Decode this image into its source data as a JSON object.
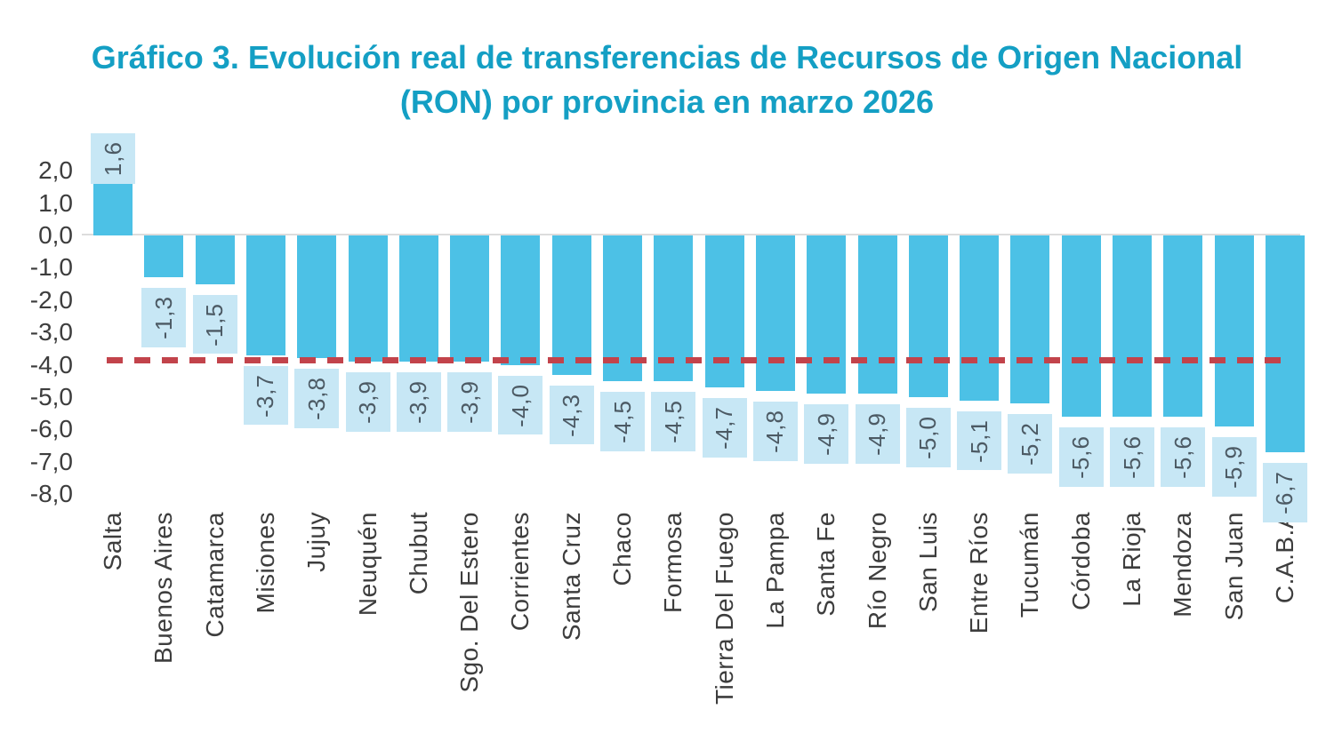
{
  "title": {
    "line1": "Gráfico 3. Evolución real de transferencias de Recursos de Origen Nacional",
    "line2": "(RON) por provincia en marzo 2026"
  },
  "chart_data": {
    "type": "bar",
    "title": "Gráfico 3. Evolución real de transferencias de Recursos de Origen Nacional (RON) por provincia en marzo 2026",
    "categories": [
      "Salta",
      "Buenos Aires",
      "Catamarca",
      "Misiones",
      "Jujuy",
      "Neuquén",
      "Chubut",
      "Sgo. Del Estero",
      "Corrientes",
      "Santa Cruz",
      "Chaco",
      "Formosa",
      "Tierra Del Fuego",
      "La Pampa",
      "Santa Fe",
      "Río Negro",
      "San Luis",
      "Entre Ríos",
      "Tucumán",
      "Córdoba",
      "La Rioja",
      "Mendoza",
      "San Juan",
      "C.A.B.A"
    ],
    "values": [
      1.6,
      -1.3,
      -1.5,
      -3.7,
      -3.8,
      -3.9,
      -3.9,
      -3.9,
      -4.0,
      -4.3,
      -4.5,
      -4.5,
      -4.7,
      -4.8,
      -4.9,
      -4.9,
      -5.0,
      -5.1,
      -5.2,
      -5.6,
      -5.6,
      -5.6,
      -5.9,
      -6.7
    ],
    "value_labels": [
      "1,6",
      "-1,3",
      "-1,5",
      "-3,7",
      "-3,8",
      "-3,9",
      "-3,9",
      "-3,9",
      "-4,0",
      "-4,3",
      "-4,5",
      "-4,5",
      "-4,7",
      "-4,8",
      "-4,9",
      "-4,9",
      "-5,0",
      "-5,1",
      "-5,2",
      "-5,6",
      "-5,6",
      "-5,6",
      "-5,9",
      "-6,7"
    ],
    "xlabel": "",
    "ylabel": "",
    "ylim": [
      -8.0,
      2.0
    ],
    "y_tick_labels": [
      "2,0",
      "1,0",
      "0,0",
      "-1,0",
      "-2,0",
      "-3,0",
      "-4,0",
      "-5,0",
      "-6,0",
      "-7,0",
      "-8,0"
    ],
    "y_tick_values": [
      2,
      1,
      0,
      -1,
      -2,
      -3,
      -4,
      -5,
      -6,
      -7,
      -8
    ],
    "grid": false,
    "legend": "none",
    "reference_line": {
      "value": -3.85,
      "style": "dashed"
    },
    "colors": {
      "bar": "#4cc1e6",
      "value_box": "#c7e7f5",
      "value_text": "#4c5a64",
      "axis_text": "#3d3d3d",
      "title_text": "#149fc4",
      "reference_line": "#c2434b",
      "zero_line": "#dcdcdc"
    }
  }
}
